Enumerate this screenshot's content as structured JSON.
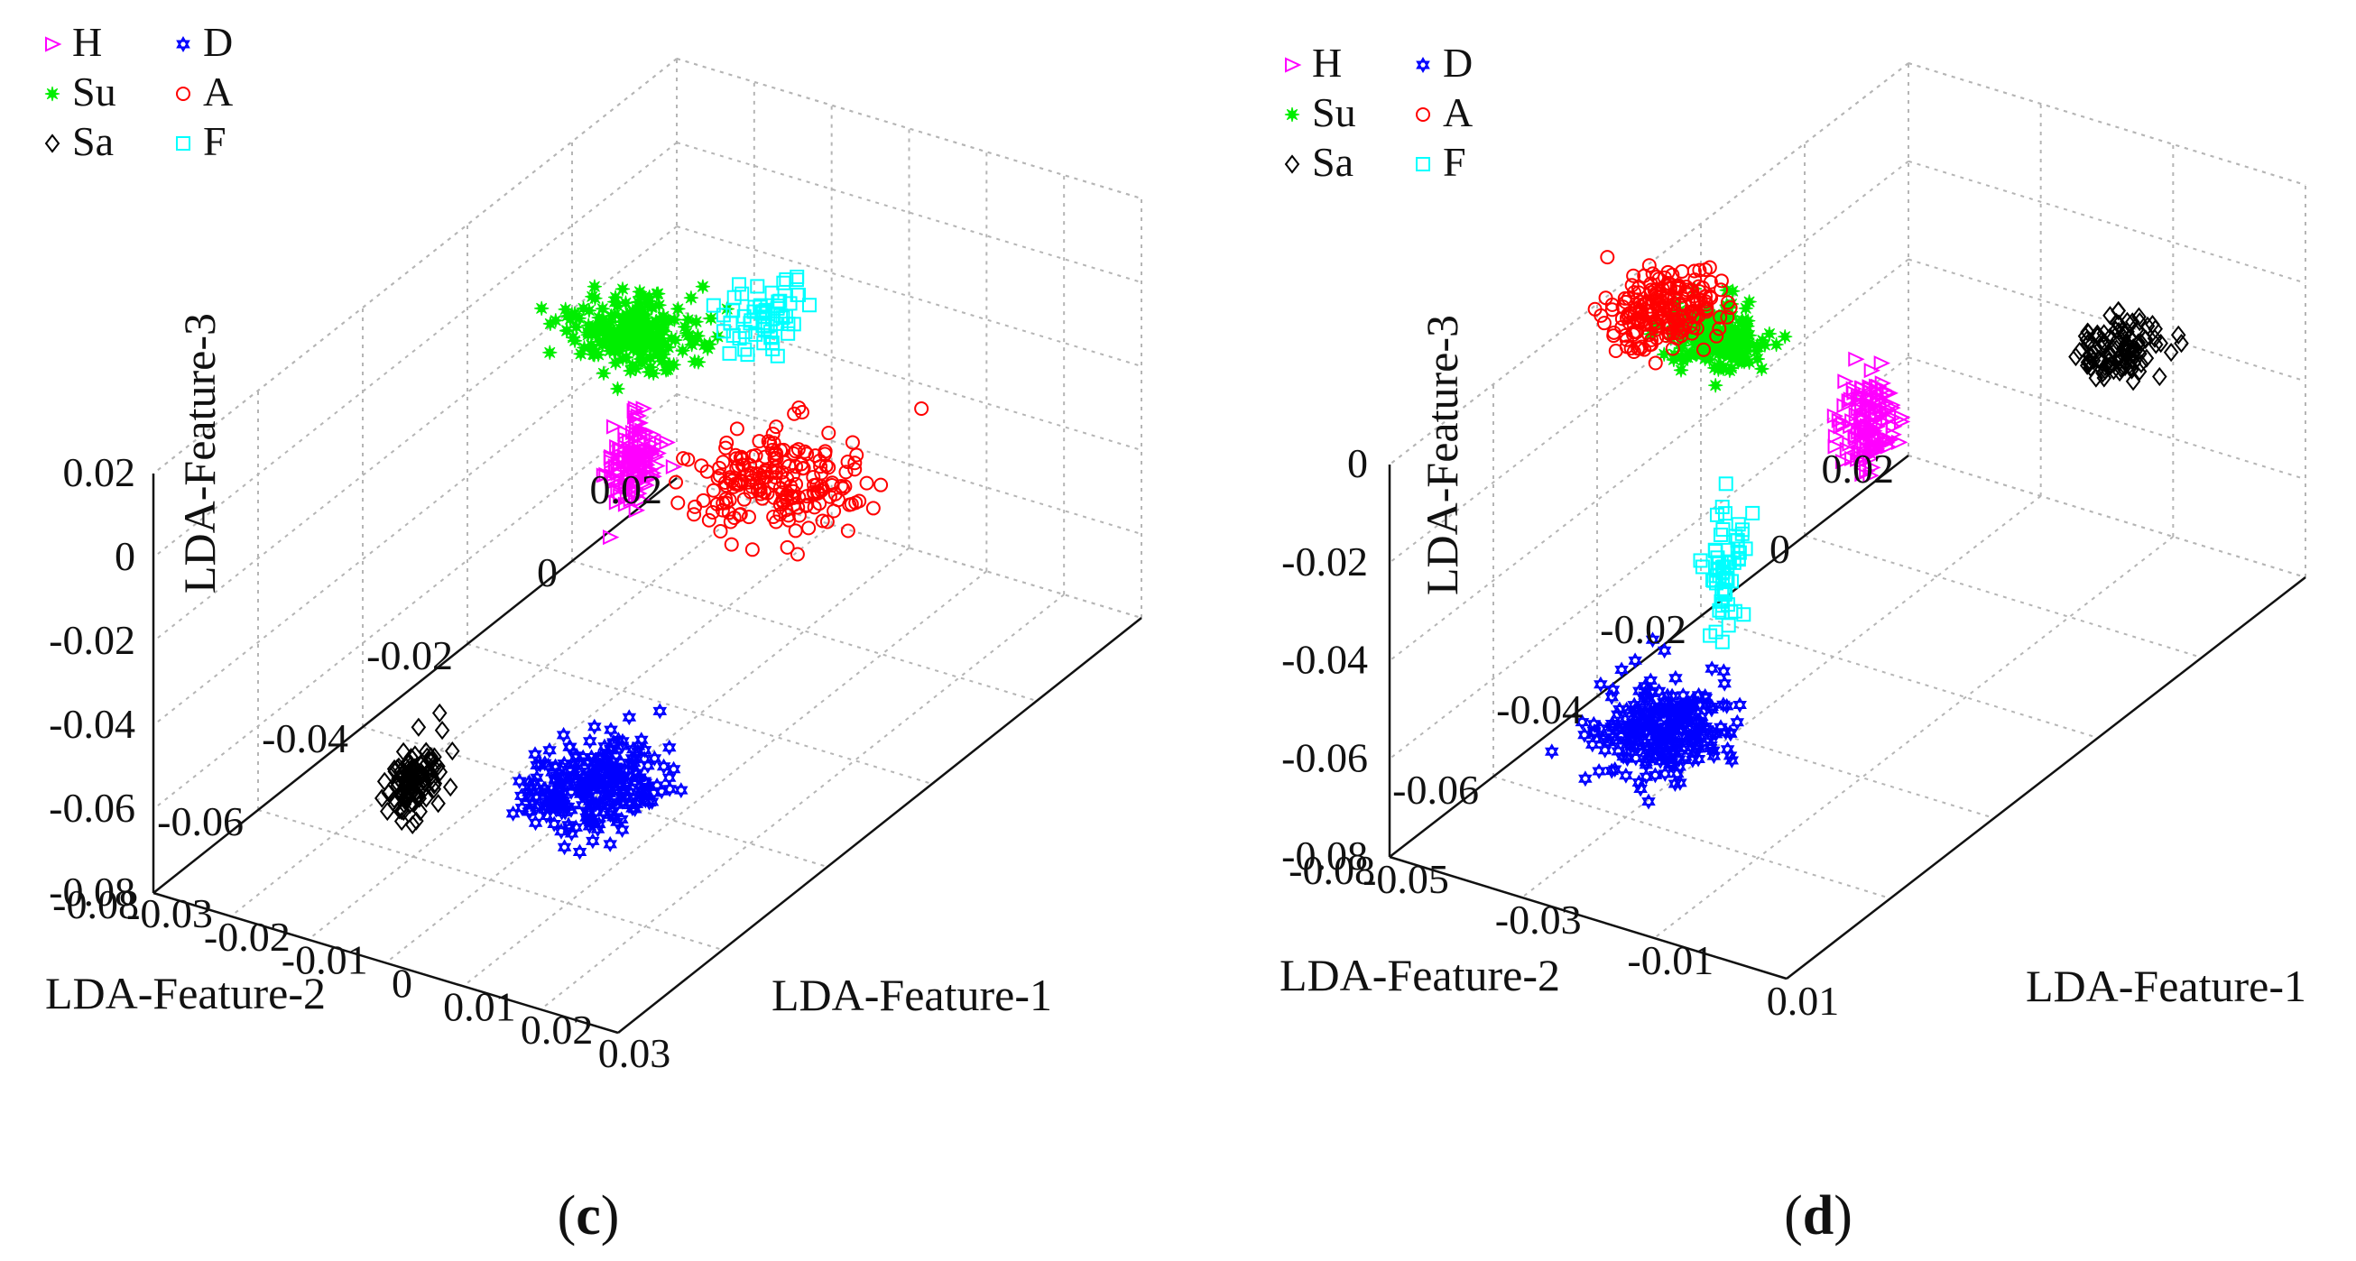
{
  "chart_data": [
    {
      "type": "scatter",
      "panel": "c",
      "caption": {
        "open": "(",
        "letter": "c",
        "close": ")"
      },
      "xlabel": "LDA-Feature-1",
      "ylabel": "LDA-Feature-2",
      "zlabel": "LDA-Feature-3",
      "xlim": [
        -0.03,
        0.03
      ],
      "ylim": [
        -0.08,
        0.02
      ],
      "zlim": [
        -0.08,
        0.02
      ],
      "xticks": [
        "-0.03",
        "-0.02",
        "-0.01",
        "0",
        "0.01",
        "0.02",
        "0.03"
      ],
      "yticks": [
        "0.02",
        "0",
        "-0.02",
        "-0.04",
        "-0.06",
        "-0.08"
      ],
      "zticks": [
        "0.02",
        "0",
        "-0.02",
        "-0.04",
        "-0.06",
        "-0.08"
      ],
      "grid": true,
      "legend_position": "top-left",
      "series": [
        {
          "name": "H",
          "marker": "triangle-right",
          "color": "#ff00ff",
          "count": 130,
          "center": [
            -0.004,
            -0.027,
            -0.016
          ],
          "spread": [
            0.0012,
            0.0015,
            0.0045
          ]
        },
        {
          "name": "Su",
          "marker": "star",
          "color": "#00ee00",
          "count": 220,
          "center": [
            -0.012,
            -0.015,
            0.0
          ],
          "spread": [
            0.0035,
            0.003,
            0.0025
          ]
        },
        {
          "name": "Sa",
          "marker": "diamond",
          "color": "#000000",
          "count": 110,
          "center": [
            -0.005,
            -0.067,
            -0.052
          ],
          "spread": [
            0.0012,
            0.002,
            0.004
          ]
        },
        {
          "name": "D",
          "marker": "hexagram",
          "color": "#0000ff",
          "count": 260,
          "center": [
            0.0065,
            -0.05,
            -0.064
          ],
          "spread": [
            0.0035,
            0.004,
            0.0035
          ]
        },
        {
          "name": "A",
          "marker": "circle",
          "color": "#ff0000",
          "count": 200,
          "center": [
            0.0195,
            -0.034,
            0.0
          ],
          "spread": [
            0.005,
            0.0045,
            0.0025
          ]
        },
        {
          "name": "F",
          "marker": "square",
          "color": "#00ffff",
          "count": 60,
          "center": [
            0.0075,
            -0.019,
            0.018
          ],
          "spread": [
            0.0025,
            0.004,
            0.0025
          ]
        }
      ]
    },
    {
      "type": "scatter",
      "panel": "d",
      "caption": {
        "open": "(",
        "letter": "d",
        "close": ")"
      },
      "xlabel": "LDA-Feature-1",
      "ylabel": "LDA-Feature-2",
      "zlabel": "LDA-Feature-3",
      "xlim": [
        -0.05,
        0.01
      ],
      "ylim": [
        -0.08,
        0.02
      ],
      "zlim": [
        -0.08,
        0.0
      ],
      "xticks": [
        "-0.05",
        "-0.03",
        "-0.01",
        "0.01"
      ],
      "yticks": [
        "0.02",
        "0",
        "-0.02",
        "-0.04",
        "-0.06",
        "-0.08"
      ],
      "zticks": [
        "0",
        "-0.02",
        "-0.04",
        "-0.06",
        "-0.08"
      ],
      "grid": true,
      "legend_position": "top-left",
      "series": [
        {
          "name": "H",
          "marker": "triangle-right",
          "color": "#ff00ff",
          "count": 130,
          "center": [
            -0.0065,
            -0.043,
            -0.004
          ],
          "spread": [
            0.0015,
            0.002,
            0.0045
          ]
        },
        {
          "name": "Su",
          "marker": "star",
          "color": "#00ee00",
          "count": 220,
          "center": [
            -0.0225,
            -0.052,
            0.0145
          ],
          "spread": [
            0.003,
            0.002,
            0.0025
          ]
        },
        {
          "name": "Sa",
          "marker": "diamond",
          "color": "#000000",
          "count": 110,
          "center": [
            0.0124,
            -0.019,
            0.0
          ],
          "spread": [
            0.0025,
            0.0025,
            0.0025
          ]
        },
        {
          "name": "D",
          "marker": "hexagram",
          "color": "#0000ff",
          "count": 260,
          "center": [
            -0.0175,
            -0.069,
            -0.0495
          ],
          "spread": [
            0.004,
            0.004,
            0.0035
          ]
        },
        {
          "name": "A",
          "marker": "circle",
          "color": "#ff0000",
          "count": 200,
          "center": [
            -0.0463,
            -0.032,
            -0.0064
          ],
          "spread": [
            0.0035,
            0.0035,
            0.0025
          ]
        },
        {
          "name": "F",
          "marker": "square",
          "color": "#00ffff",
          "count": 60,
          "center": [
            -0.0172,
            -0.057,
            -0.026
          ],
          "spread": [
            0.001,
            0.0015,
            0.006
          ]
        }
      ]
    }
  ]
}
